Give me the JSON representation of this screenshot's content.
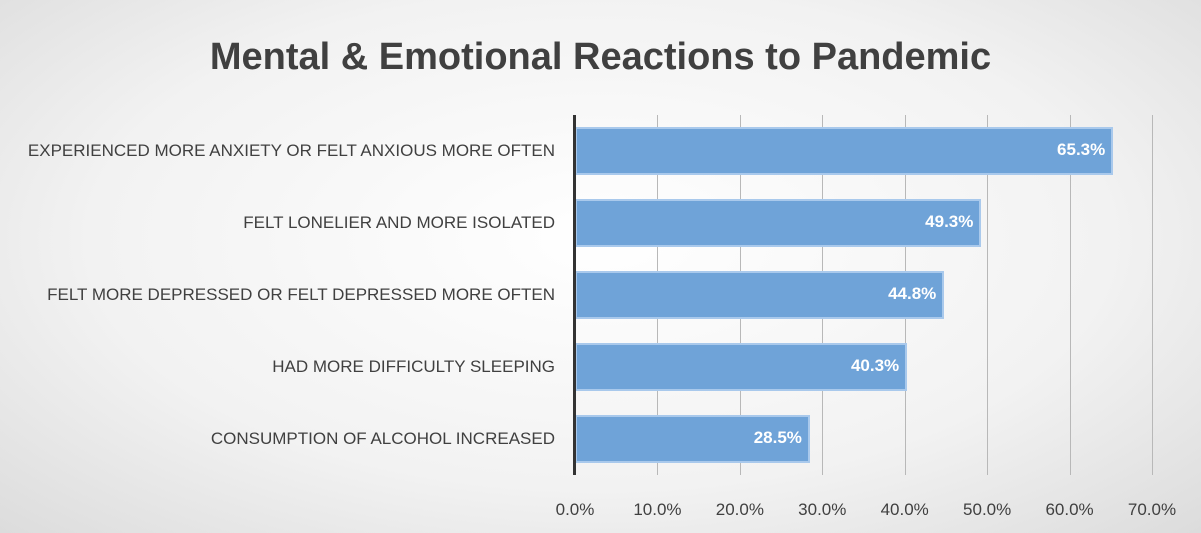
{
  "chart_data": {
    "type": "bar",
    "orientation": "horizontal",
    "title": "Mental & Emotional Reactions to Pandemic",
    "categories": [
      "EXPERIENCED MORE ANXIETY OR FELT ANXIOUS MORE OFTEN",
      "FELT LONELIER AND MORE ISOLATED",
      "FELT MORE DEPRESSED OR FELT DEPRESSED MORE OFTEN",
      "HAD MORE DIFFICULTY SLEEPING",
      "CONSUMPTION OF ALCOHOL INCREASED"
    ],
    "values": [
      65.3,
      49.3,
      44.8,
      40.3,
      28.5
    ],
    "value_labels": [
      "65.3%",
      "49.3%",
      "44.8%",
      "40.3%",
      "28.5%"
    ],
    "color": "#6fa3d8",
    "xlim": [
      0,
      70
    ],
    "xticks": [
      {
        "value": 0,
        "label": "0.0%"
      },
      {
        "value": 10,
        "label": "10.0%"
      },
      {
        "value": 20,
        "label": "20.0%"
      },
      {
        "value": 30,
        "label": "30.0%"
      },
      {
        "value": 40,
        "label": "40.0%"
      },
      {
        "value": 50,
        "label": "50.0%"
      },
      {
        "value": 60,
        "label": "60.0%"
      },
      {
        "value": 70,
        "label": "70.0%"
      }
    ],
    "grid": true
  }
}
